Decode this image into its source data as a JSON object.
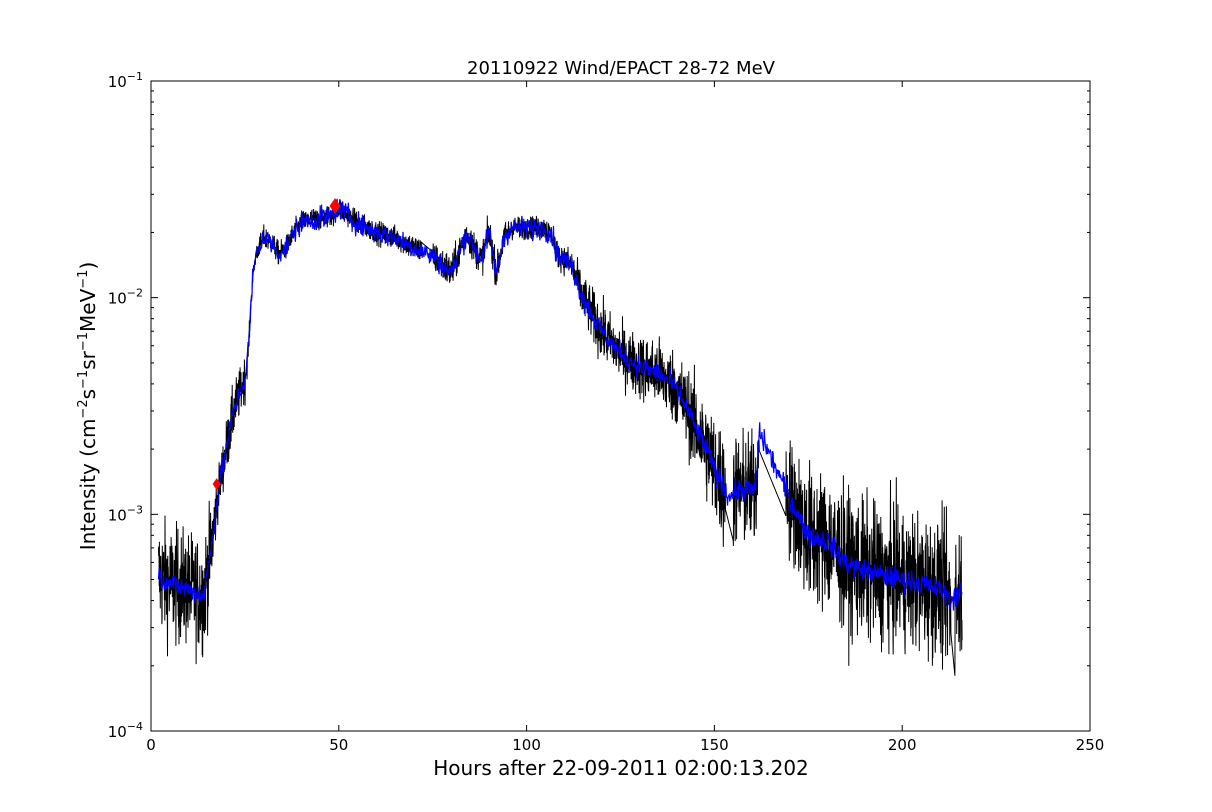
{
  "chart_data": {
    "type": "line",
    "title": "20110922 Wind/EPACT 28-72 MeV",
    "xlabel": "Hours after 22-09-2011 02:00:13.202",
    "ylabel_parts": {
      "a": "Intensity (cm",
      "e1": "−2",
      "b": "s",
      "e2": "−1",
      "c": "sr",
      "e3": "−1",
      "d": "MeV",
      "e4": "−1",
      "f": ")"
    },
    "xlim": [
      0,
      250
    ],
    "ylim": [
      0.0001,
      0.1
    ],
    "yscale": "log",
    "xticks": [
      0,
      50,
      100,
      150,
      200,
      250
    ],
    "xtick_labels": [
      "0",
      "50",
      "100",
      "150",
      "200",
      "250"
    ],
    "yticks": [
      {
        "value": 0.0001,
        "base": "10",
        "exp": "−4"
      },
      {
        "value": 0.001,
        "base": "10",
        "exp": "−3"
      },
      {
        "value": 0.01,
        "base": "10",
        "exp": "−2"
      },
      {
        "value": 0.1,
        "base": "10",
        "exp": "−1"
      }
    ],
    "grid": false,
    "colors": {
      "raw": "#000000",
      "smoothed": "#0000ff",
      "marker": "#ff0000"
    },
    "series": [
      {
        "style": "raw-noisy",
        "x": [
          2,
          5,
          10,
          14,
          16,
          18,
          20,
          22,
          24,
          25,
          26,
          27,
          28,
          30,
          32,
          34,
          36,
          38,
          40,
          42,
          45,
          48,
          50,
          55,
          60,
          65,
          70,
          72,
          75,
          78,
          80,
          82,
          84,
          86,
          88,
          90,
          92,
          94,
          96,
          100,
          105,
          107,
          108,
          110,
          112,
          115,
          118,
          120,
          125,
          130,
          135,
          140,
          143,
          145,
          148,
          150,
          152,
          154,
          156,
          158,
          161,
          162,
          169,
          175,
          180,
          185,
          190,
          195,
          200,
          205,
          210,
          213,
          216
        ],
        "y": [
          0.00052,
          0.00048,
          0.00045,
          0.00042,
          0.0007,
          0.0013,
          0.002,
          0.003,
          0.0038,
          0.0042,
          0.006,
          0.012,
          0.016,
          0.019,
          0.018,
          0.016,
          0.017,
          0.02,
          0.022,
          0.023,
          0.023,
          0.024,
          0.026,
          0.022,
          0.02,
          0.019,
          0.017,
          0.0165,
          0.0155,
          0.014,
          0.013,
          0.016,
          0.02,
          0.017,
          0.015,
          0.02,
          0.013,
          0.019,
          0.021,
          0.021,
          0.021,
          0.019,
          0.016,
          0.015,
          0.014,
          0.01,
          0.008,
          0.007,
          0.0055,
          0.0048,
          0.0045,
          0.0038,
          0.003,
          0.0025,
          0.002,
          0.0016,
          0.0014,
          0.0012,
          0.0013,
          0.0013,
          0.0013,
          0.0024,
          0.0013,
          0.0008,
          0.00075,
          0.0006,
          0.00055,
          0.00052,
          0.0005,
          0.00048,
          0.00045,
          0.0004,
          0.00045
        ],
        "noise_dex": [
          0.25,
          0.25,
          0.25,
          0.25,
          0.2,
          0.1,
          0.12,
          0.12,
          0.1,
          0.1,
          0.05,
          0.03,
          0.04,
          0.05,
          0.05,
          0.05,
          0.05,
          0.05,
          0.05,
          0.05,
          0.05,
          0.05,
          0.05,
          0.05,
          0.05,
          0.05,
          0.06,
          0.06,
          0.06,
          0.08,
          0.08,
          0.07,
          0.07,
          0.07,
          0.07,
          0.07,
          0.07,
          0.06,
          0.05,
          0.05,
          0.05,
          0.05,
          0.06,
          0.06,
          0.08,
          0.1,
          0.12,
          0.12,
          0.12,
          0.14,
          0.15,
          0.16,
          0.18,
          0.2,
          0.22,
          0.25,
          0.25,
          0.25,
          0.25,
          0.25,
          0.25,
          0.1,
          0.25,
          0.3,
          0.3,
          0.3,
          0.3,
          0.3,
          0.3,
          0.3,
          0.3,
          0.3,
          0.3
        ],
        "floor": 0.00018,
        "gaps": [
          [
            72,
            75
          ],
          [
            153,
            155
          ],
          [
            162,
            169
          ],
          [
            213,
            214
          ]
        ]
      },
      {
        "style": "smoothed",
        "x": [
          2,
          5,
          10,
          14,
          16,
          18,
          20,
          22,
          24,
          25,
          26,
          27,
          28,
          30,
          32,
          34,
          36,
          38,
          40,
          42,
          45,
          48,
          50,
          55,
          60,
          65,
          70,
          72,
          75,
          78,
          80,
          82,
          84,
          86,
          88,
          90,
          92,
          94,
          96,
          100,
          105,
          107,
          108,
          110,
          112,
          115,
          118,
          120,
          125,
          130,
          135,
          140,
          143,
          145,
          148,
          150,
          152,
          154,
          156,
          158,
          161,
          162,
          169,
          175,
          180,
          185,
          190,
          195,
          200,
          205,
          210,
          213,
          216
        ],
        "y": [
          0.00052,
          0.00048,
          0.00045,
          0.00042,
          0.0007,
          0.0013,
          0.002,
          0.003,
          0.0038,
          0.0042,
          0.006,
          0.012,
          0.016,
          0.019,
          0.018,
          0.016,
          0.017,
          0.02,
          0.022,
          0.023,
          0.023,
          0.024,
          0.026,
          0.022,
          0.02,
          0.019,
          0.017,
          0.0165,
          0.0155,
          0.014,
          0.013,
          0.016,
          0.02,
          0.017,
          0.015,
          0.02,
          0.013,
          0.019,
          0.021,
          0.021,
          0.021,
          0.019,
          0.016,
          0.015,
          0.014,
          0.01,
          0.008,
          0.007,
          0.0055,
          0.0048,
          0.0045,
          0.0038,
          0.003,
          0.0025,
          0.002,
          0.0016,
          0.0014,
          0.0012,
          0.0013,
          0.0013,
          0.0013,
          0.0024,
          0.0013,
          0.0008,
          0.00075,
          0.0006,
          0.00055,
          0.00052,
          0.0005,
          0.00048,
          0.00045,
          0.0004,
          0.00045
        ],
        "noise_dex": 0.05
      }
    ],
    "markers": [
      {
        "x": 17.5,
        "y": 0.00138,
        "shape": "diamond",
        "size": "small"
      },
      {
        "x": 49,
        "y": 0.0265,
        "shape": "diamond",
        "size": "large"
      }
    ]
  }
}
